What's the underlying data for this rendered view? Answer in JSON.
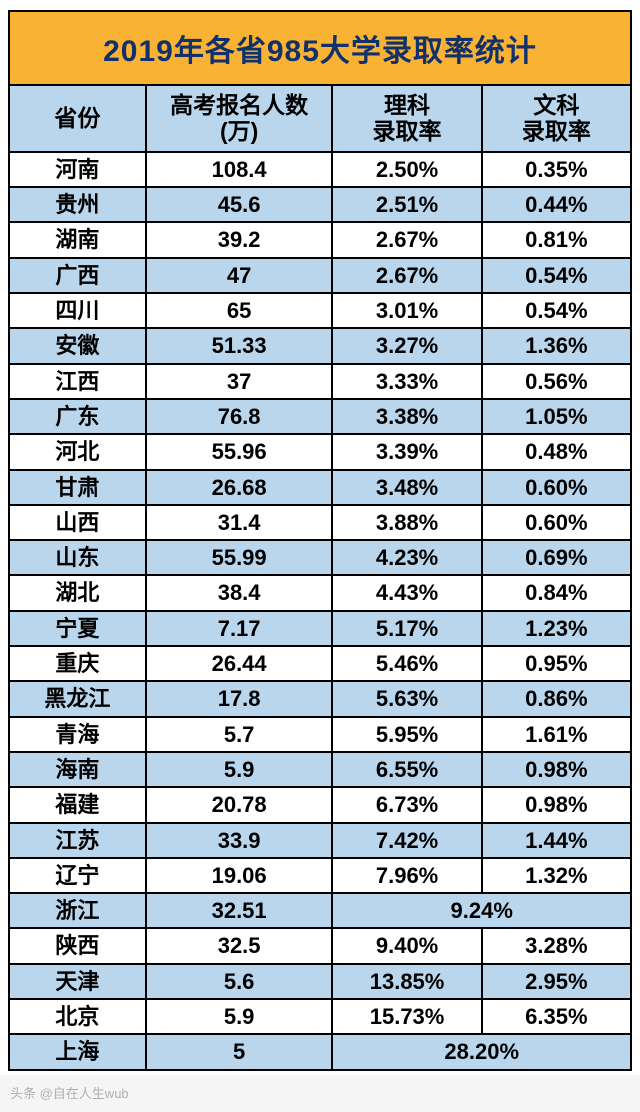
{
  "title": "2019年各省985大学录取率统计",
  "colors": {
    "title_bg": "#f9b233",
    "title_fg": "#10316b",
    "header_bg": "#b9d6ec",
    "row_alt_bg": "#b9d6ec",
    "row_normal_bg": "#ffffff",
    "border": "#000000"
  },
  "columns": [
    {
      "line1": "省份",
      "line2": ""
    },
    {
      "line1": "高考报名人数",
      "line2": "(万)"
    },
    {
      "line1": "理科",
      "line2": "录取率"
    },
    {
      "line1": "文科",
      "line2": "录取率"
    }
  ],
  "rows": [
    {
      "province": "河南",
      "applicants": "108.4",
      "science": "2.50%",
      "arts": "0.35%"
    },
    {
      "province": "贵州",
      "applicants": "45.6",
      "science": "2.51%",
      "arts": "0.44%"
    },
    {
      "province": "湖南",
      "applicants": "39.2",
      "science": "2.67%",
      "arts": "0.81%"
    },
    {
      "province": "广西",
      "applicants": "47",
      "science": "2.67%",
      "arts": "0.54%"
    },
    {
      "province": "四川",
      "applicants": "65",
      "science": "3.01%",
      "arts": "0.54%"
    },
    {
      "province": "安徽",
      "applicants": "51.33",
      "science": "3.27%",
      "arts": "1.36%"
    },
    {
      "province": "江西",
      "applicants": "37",
      "science": "3.33%",
      "arts": "0.56%"
    },
    {
      "province": "广东",
      "applicants": "76.8",
      "science": "3.38%",
      "arts": "1.05%"
    },
    {
      "province": "河北",
      "applicants": "55.96",
      "science": "3.39%",
      "arts": "0.48%"
    },
    {
      "province": "甘肃",
      "applicants": "26.68",
      "science": "3.48%",
      "arts": "0.60%"
    },
    {
      "province": "山西",
      "applicants": "31.4",
      "science": "3.88%",
      "arts": "0.60%"
    },
    {
      "province": "山东",
      "applicants": "55.99",
      "science": "4.23%",
      "arts": "0.69%"
    },
    {
      "province": "湖北",
      "applicants": "38.4",
      "science": "4.43%",
      "arts": "0.84%"
    },
    {
      "province": "宁夏",
      "applicants": "7.17",
      "science": "5.17%",
      "arts": "1.23%"
    },
    {
      "province": "重庆",
      "applicants": "26.44",
      "science": "5.46%",
      "arts": "0.95%"
    },
    {
      "province": "黑龙江",
      "applicants": "17.8",
      "science": "5.63%",
      "arts": "0.86%"
    },
    {
      "province": "青海",
      "applicants": "5.7",
      "science": "5.95%",
      "arts": "1.61%"
    },
    {
      "province": "海南",
      "applicants": "5.9",
      "science": "6.55%",
      "arts": "0.98%"
    },
    {
      "province": "福建",
      "applicants": "20.78",
      "science": "6.73%",
      "arts": "0.98%"
    },
    {
      "province": "江苏",
      "applicants": "33.9",
      "science": "7.42%",
      "arts": "1.44%"
    },
    {
      "province": "辽宁",
      "applicants": "19.06",
      "science": "7.96%",
      "arts": "1.32%"
    },
    {
      "province": "浙江",
      "applicants": "32.51",
      "merged": "9.24%"
    },
    {
      "province": "陕西",
      "applicants": "32.5",
      "science": "9.40%",
      "arts": "3.28%"
    },
    {
      "province": "天津",
      "applicants": "5.6",
      "science": "13.85%",
      "arts": "2.95%"
    },
    {
      "province": "北京",
      "applicants": "5.9",
      "science": "15.73%",
      "arts": "6.35%"
    },
    {
      "province": "上海",
      "applicants": "5",
      "merged": "28.20%"
    }
  ],
  "watermark": "头条 @自在人生wub"
}
